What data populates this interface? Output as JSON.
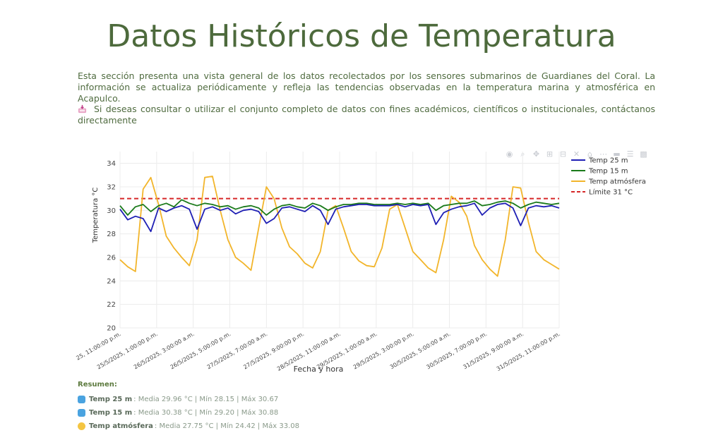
{
  "page": {
    "title": "Datos Históricos de Temperatura",
    "intro": "Esta sección presenta una vista general de los datos recolectados por los sensores submarinos de Guardianes del Coral. La información se actualiza periódicamente y refleja las tendencias observadas en la temperatura marina y atmosférica en Acapulco.",
    "contact": "Si deseas consultar o utilizar el conjunto completo de datos con fines académicos, científicos o institucionales, contáctanos directamente"
  },
  "icons": {
    "contact": "inbox-tray-icon",
    "temp25": "water-wave-icon",
    "temp15": "water-wave-icon",
    "atm": "sun-behind-cloud-icon"
  },
  "toolbar": [
    "camera-icon",
    "zoom-icon",
    "pan-icon",
    "zoom-in-icon",
    "zoom-out-icon",
    "autoscale-icon",
    "reset-axes-icon",
    "spike-lines-icon",
    "hover-closest-icon",
    "hover-compare-icon",
    "plotly-logo-icon"
  ],
  "chart_data": {
    "type": "line",
    "xlabel": "Fecha y hora",
    "ylabel": "Temperatura °C",
    "ylim": [
      20,
      35
    ],
    "yticks": [
      20,
      22,
      24,
      26,
      28,
      30,
      32,
      34
    ],
    "xticks": [
      "25/5/2025, 11:00:00 p.m.",
      "25/5/2025, 1:00:00 p.m.",
      "26/5/2025, 3:00:00 a.m.",
      "26/5/2025, 5:00:00 p.m.",
      "27/5/2025, 7:00:00 a.m.",
      "27/5/2025, 9:00:00 p.m.",
      "28/5/2025, 11:00:00 a.m.",
      "29/5/2025, 1:00:00 a.m.",
      "29/5/2025, 3:00:00 p.m.",
      "30/5/2025, 5:00:00 a.m.",
      "30/5/2025, 7:00:00 p.m.",
      "31/5/2025, 9:00:00 a.m.",
      "31/5/2025, 11:00:00 p.m."
    ],
    "xticks_display": [
      "25, 11:00:00 p.m.",
      "25/5/2025, 1:00:00 p.m.",
      "26/5/2025, 3:00:00 a.m.",
      "26/5/2025, 5:00:00 p.m.",
      "27/5/2025, 7:00:00 a.m.",
      "27/5/2025, 9:00:00 p.m.",
      "28/5/2025, 11:00:00 a.m.",
      "29/5/2025, 1:00:00 a.m.",
      "29/5/2025, 3:00:00 p.m.",
      "30/5/2025, 5:00:00 a.m.",
      "30/5/2025, 7:00:00 p.m.",
      "31/5/2025, 9:00:00 a.m.",
      "31/5/2025, 11:00:00 p.m."
    ],
    "grid": true,
    "legend_position": "top-right",
    "threshold": {
      "name": "Límite 31 °C",
      "value": 31,
      "color": "#d62728",
      "dash": true
    },
    "x_hours": [
      0,
      3,
      6,
      9,
      12,
      15,
      18,
      21,
      24,
      27,
      30,
      33,
      36,
      39,
      42,
      45,
      48,
      51,
      54,
      57,
      60,
      63,
      66,
      69,
      72,
      75,
      78,
      81,
      84,
      87,
      90,
      93,
      96,
      99,
      102,
      105,
      108,
      111,
      114,
      117,
      120,
      123,
      126,
      129,
      132,
      135,
      138,
      141,
      144,
      147,
      150,
      153,
      156,
      159,
      162,
      165,
      168,
      171
    ],
    "series": [
      {
        "name": "Temp 25 m",
        "color": "#1f1fb4",
        "values": [
          30.1,
          29.2,
          29.5,
          29.3,
          28.2,
          30.2,
          29.9,
          30.2,
          30.4,
          30.1,
          28.4,
          30.1,
          30.3,
          30.0,
          30.2,
          29.7,
          30.0,
          30.1,
          29.9,
          28.9,
          29.3,
          30.2,
          30.3,
          30.1,
          29.9,
          30.4,
          30.0,
          28.8,
          30.1,
          30.3,
          30.4,
          30.5,
          30.5,
          30.4,
          30.4,
          30.4,
          30.5,
          30.3,
          30.5,
          30.4,
          30.5,
          28.8,
          29.8,
          30.1,
          30.3,
          30.4,
          30.6,
          29.6,
          30.2,
          30.5,
          30.6,
          30.2,
          28.7,
          30.2,
          30.4,
          30.3,
          30.4,
          30.2
        ]
      },
      {
        "name": "Temp 15 m",
        "color": "#1a7a1a",
        "values": [
          30.4,
          29.6,
          30.3,
          30.5,
          29.9,
          30.4,
          30.6,
          30.3,
          30.9,
          30.6,
          30.4,
          30.6,
          30.5,
          30.3,
          30.4,
          30.1,
          30.3,
          30.4,
          30.2,
          29.6,
          30.1,
          30.4,
          30.5,
          30.3,
          30.2,
          30.6,
          30.4,
          30.0,
          30.3,
          30.5,
          30.5,
          30.6,
          30.6,
          30.5,
          30.5,
          30.5,
          30.6,
          30.5,
          30.6,
          30.5,
          30.6,
          30.0,
          30.4,
          30.5,
          30.6,
          30.6,
          30.8,
          30.4,
          30.5,
          30.7,
          30.8,
          30.6,
          30.2,
          30.5,
          30.7,
          30.6,
          30.5,
          30.6
        ]
      },
      {
        "name": "Temp atmósfera",
        "color": "#f2b52b",
        "values": [
          25.8,
          25.2,
          24.8,
          31.8,
          32.8,
          30.5,
          27.8,
          26.8,
          26.0,
          25.3,
          27.5,
          32.8,
          32.9,
          30.0,
          27.5,
          26.0,
          25.5,
          24.9,
          28.5,
          32.0,
          31.0,
          28.5,
          26.9,
          26.3,
          25.5,
          25.1,
          26.5,
          30.0,
          30.4,
          28.5,
          26.5,
          25.7,
          25.3,
          25.2,
          26.8,
          30.1,
          30.5,
          28.5,
          26.5,
          25.8,
          25.1,
          24.7,
          27.5,
          31.2,
          30.7,
          29.5,
          27.0,
          25.8,
          25.0,
          24.4,
          27.5,
          32.0,
          31.9,
          29.0,
          26.5,
          25.8,
          25.4,
          25.0
        ]
      }
    ]
  },
  "summary": {
    "title": "Resumen:",
    "rows": [
      {
        "label": "Temp 25 m",
        "stats": ": Media 29.96 °C | Mín 28.15 | Máx 30.67"
      },
      {
        "label": "Temp 15 m",
        "stats": ": Media 30.38 °C | Mín 29.20 | Máx 30.88"
      },
      {
        "label": "Temp atmósfera",
        "stats": ": Media 27.75 °C | Mín 24.42 | Máx 33.08"
      }
    ]
  }
}
